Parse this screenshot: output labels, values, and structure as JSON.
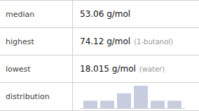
{
  "chart_data": {
    "type": "bar",
    "table": [
      {
        "label": "median",
        "value": "53.06 g/mol"
      },
      {
        "label": "highest",
        "value": "74.12 g/mol",
        "note": "(1-butanol)"
      },
      {
        "label": "lowest",
        "value": "18.015 g/mol",
        "note": "(water)"
      },
      {
        "label": "distribution"
      }
    ],
    "categories": [
      null,
      null,
      null,
      null,
      null,
      null
    ],
    "values": [
      1,
      1,
      2,
      3,
      1,
      1
    ],
    "color": "#c8cce0",
    "ylim": [
      0,
      3.1
    ],
    "tick_labels": false
  }
}
